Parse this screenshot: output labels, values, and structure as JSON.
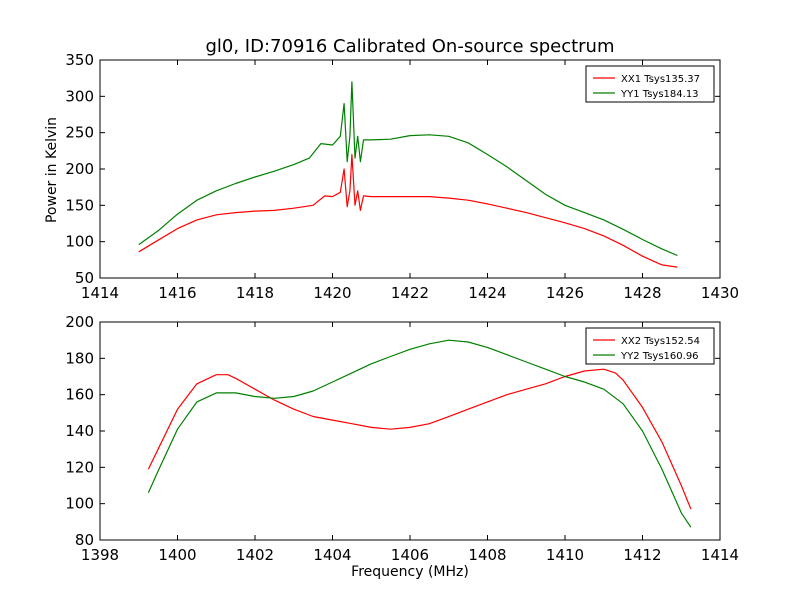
{
  "chart_data": [
    {
      "type": "line",
      "title": "gl0, ID:70916 Calibrated On-source spectrum",
      "xlabel": "",
      "ylabel": "Power in Kelvin",
      "xlim": [
        1414,
        1430
      ],
      "ylim": [
        50,
        350
      ],
      "xticks": [
        1414,
        1416,
        1418,
        1420,
        1422,
        1424,
        1426,
        1428,
        1430
      ],
      "yticks": [
        50,
        100,
        150,
        200,
        250,
        300,
        350
      ],
      "grid": false,
      "legend_position": "top-right",
      "series": [
        {
          "name": "XX1 Tsys135.37",
          "color": "#ff0000",
          "points": [
            [
              1415,
              86
            ],
            [
              1415.5,
              102
            ],
            [
              1416,
              118
            ],
            [
              1416.5,
              130
            ],
            [
              1417,
              137
            ],
            [
              1417.5,
              140
            ],
            [
              1418,
              142
            ],
            [
              1418.5,
              143
            ],
            [
              1419,
              146
            ],
            [
              1419.5,
              150
            ],
            [
              1419.8,
              163
            ],
            [
              1420.0,
              162
            ],
            [
              1420.2,
              168
            ],
            [
              1420.3,
              200
            ],
            [
              1420.38,
              148
            ],
            [
              1420.45,
              170
            ],
            [
              1420.5,
              220
            ],
            [
              1420.58,
              150
            ],
            [
              1420.65,
              170
            ],
            [
              1420.72,
              143
            ],
            [
              1420.8,
              163
            ],
            [
              1421,
              162
            ],
            [
              1421.5,
              162
            ],
            [
              1422,
              162
            ],
            [
              1422.5,
              162
            ],
            [
              1423,
              160
            ],
            [
              1423.5,
              157
            ],
            [
              1424,
              152
            ],
            [
              1424.5,
              146
            ],
            [
              1425,
              140
            ],
            [
              1425.5,
              133
            ],
            [
              1426,
              126
            ],
            [
              1426.5,
              118
            ],
            [
              1427,
              108
            ],
            [
              1427.5,
              95
            ],
            [
              1428,
              80
            ],
            [
              1428.5,
              68
            ],
            [
              1428.9,
              65
            ]
          ]
        },
        {
          "name": "YY1 Tsys184.13",
          "color": "#008000",
          "points": [
            [
              1415,
              96
            ],
            [
              1415.5,
              115
            ],
            [
              1416,
              138
            ],
            [
              1416.5,
              157
            ],
            [
              1417,
              170
            ],
            [
              1417.5,
              180
            ],
            [
              1418,
              189
            ],
            [
              1418.5,
              197
            ],
            [
              1419,
              206
            ],
            [
              1419.4,
              215
            ],
            [
              1419.7,
              235
            ],
            [
              1420.0,
              233
            ],
            [
              1420.2,
              245
            ],
            [
              1420.3,
              290
            ],
            [
              1420.38,
              210
            ],
            [
              1420.45,
              245
            ],
            [
              1420.5,
              320
            ],
            [
              1420.58,
              215
            ],
            [
              1420.65,
              245
            ],
            [
              1420.72,
              210
            ],
            [
              1420.8,
              240
            ],
            [
              1421,
              240
            ],
            [
              1421.5,
              241
            ],
            [
              1422,
              246
            ],
            [
              1422.5,
              247
            ],
            [
              1423,
              245
            ],
            [
              1423.5,
              236
            ],
            [
              1424,
              220
            ],
            [
              1424.5,
              203
            ],
            [
              1425,
              184
            ],
            [
              1425.5,
              165
            ],
            [
              1426,
              150
            ],
            [
              1426.5,
              140
            ],
            [
              1427,
              130
            ],
            [
              1427.5,
              117
            ],
            [
              1428,
              103
            ],
            [
              1428.5,
              90
            ],
            [
              1428.9,
              81
            ]
          ]
        }
      ]
    },
    {
      "type": "line",
      "title": "",
      "xlabel": "Frequency (MHz)",
      "ylabel": "",
      "xlim": [
        1398,
        1414
      ],
      "ylim": [
        80,
        200
      ],
      "xticks": [
        1398,
        1400,
        1402,
        1404,
        1406,
        1408,
        1410,
        1412,
        1414
      ],
      "yticks": [
        80,
        100,
        120,
        140,
        160,
        180,
        200
      ],
      "grid": false,
      "legend_position": "top-right",
      "series": [
        {
          "name": "XX2 Tsys152.54",
          "color": "#ff0000",
          "points": [
            [
              1399.25,
              119
            ],
            [
              1399.5,
              130
            ],
            [
              1400,
              152
            ],
            [
              1400.5,
              166
            ],
            [
              1401,
              171
            ],
            [
              1401.3,
              171
            ],
            [
              1401.5,
              169
            ],
            [
              1402,
              163
            ],
            [
              1402.5,
              157
            ],
            [
              1403,
              152
            ],
            [
              1403.5,
              148
            ],
            [
              1404,
              146
            ],
            [
              1404.5,
              144
            ],
            [
              1405,
              142
            ],
            [
              1405.5,
              141
            ],
            [
              1406,
              142
            ],
            [
              1406.5,
              144
            ],
            [
              1407,
              148
            ],
            [
              1407.5,
              152
            ],
            [
              1408,
              156
            ],
            [
              1408.5,
              160
            ],
            [
              1409,
              163
            ],
            [
              1409.5,
              166
            ],
            [
              1410,
              170
            ],
            [
              1410.5,
              173
            ],
            [
              1411,
              174
            ],
            [
              1411.3,
              172
            ],
            [
              1411.5,
              168
            ],
            [
              1412,
              153
            ],
            [
              1412.5,
              134
            ],
            [
              1413,
              110
            ],
            [
              1413.25,
              97
            ]
          ]
        },
        {
          "name": "YY2 Tsys160.96",
          "color": "#008000",
          "points": [
            [
              1399.25,
              106
            ],
            [
              1399.5,
              118
            ],
            [
              1400,
              141
            ],
            [
              1400.5,
              156
            ],
            [
              1401,
              161
            ],
            [
              1401.5,
              161
            ],
            [
              1402,
              159
            ],
            [
              1402.5,
              158
            ],
            [
              1403,
              159
            ],
            [
              1403.5,
              162
            ],
            [
              1404,
              167
            ],
            [
              1404.5,
              172
            ],
            [
              1405,
              177
            ],
            [
              1405.5,
              181
            ],
            [
              1406,
              185
            ],
            [
              1406.5,
              188
            ],
            [
              1407,
              190
            ],
            [
              1407.5,
              189
            ],
            [
              1408,
              186
            ],
            [
              1408.5,
              182
            ],
            [
              1409,
              178
            ],
            [
              1409.5,
              174
            ],
            [
              1410,
              170
            ],
            [
              1410.5,
              167
            ],
            [
              1411,
              163
            ],
            [
              1411.5,
              155
            ],
            [
              1412,
              140
            ],
            [
              1412.5,
              119
            ],
            [
              1413,
              95
            ],
            [
              1413.25,
              87
            ]
          ]
        }
      ]
    }
  ]
}
